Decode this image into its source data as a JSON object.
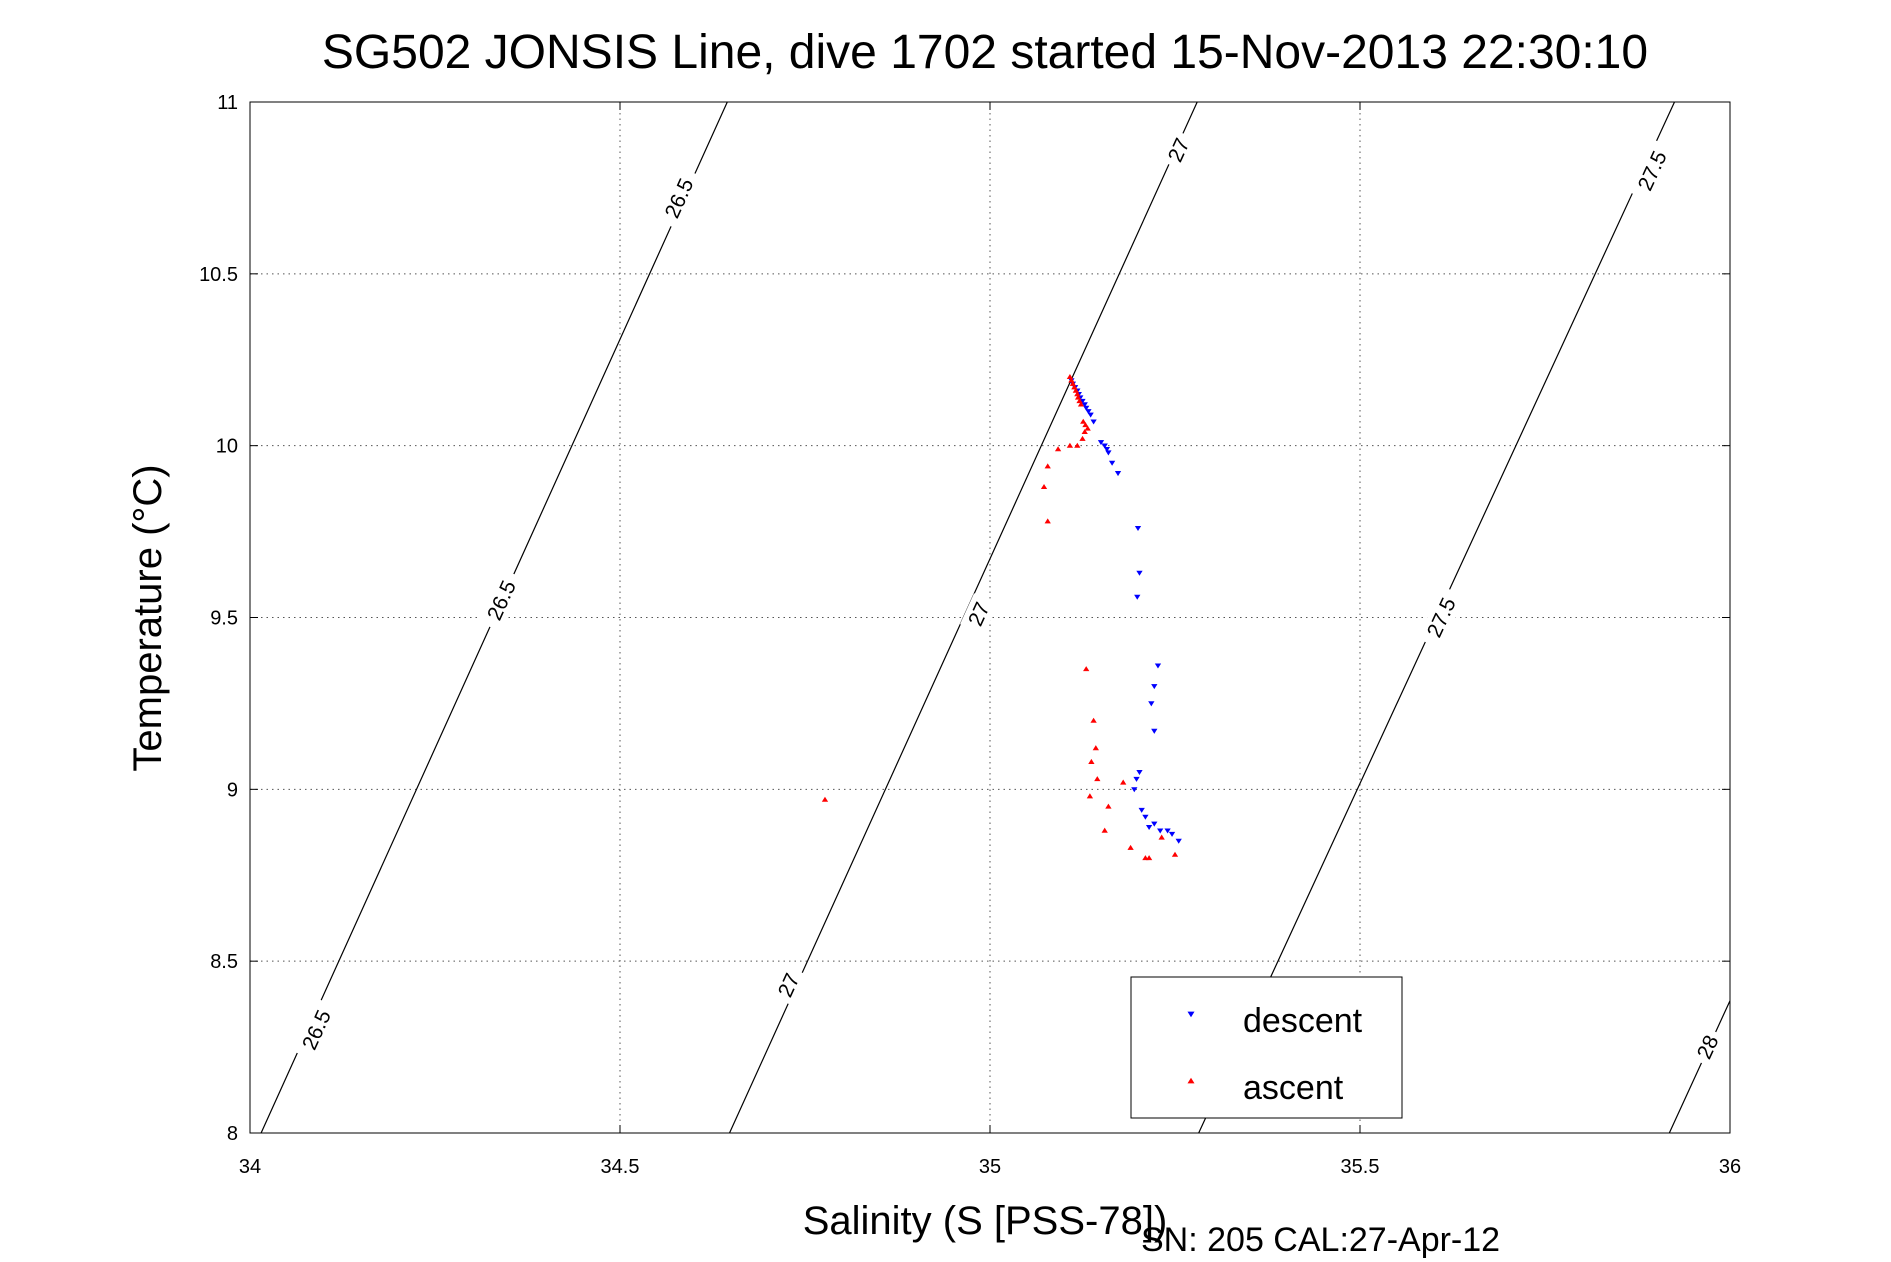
{
  "chart_data": {
    "type": "scatter",
    "title": "SG502 JONSIS Line, dive 1702 started 15-Nov-2013 22:30:10",
    "xlabel": "Salinity (S [PSS-78])",
    "ylabel": "Temperature (°C)",
    "xlim": [
      34,
      36
    ],
    "ylim": [
      8,
      11
    ],
    "xticks": [
      34,
      34.5,
      35,
      35.5,
      36
    ],
    "xtick_labels": [
      "34",
      "34.5",
      "35",
      "35.5",
      "36"
    ],
    "yticks": [
      8,
      8.5,
      9,
      9.5,
      10,
      10.5,
      11
    ],
    "ytick_labels": [
      "8",
      "8.5",
      "9",
      "9.5",
      "10",
      "10.5",
      "11"
    ],
    "grid": true,
    "legend_position": "bottom-right",
    "footer": "SN: 205  CAL:27-Apr-12",
    "series": [
      {
        "name": "descent",
        "marker": "triangle-down",
        "color": "#0000ff",
        "points": [
          [
            35.11,
            10.19
          ],
          [
            35.112,
            10.18
          ],
          [
            35.115,
            10.17
          ],
          [
            35.118,
            10.16
          ],
          [
            35.12,
            10.15
          ],
          [
            35.122,
            10.14
          ],
          [
            35.125,
            10.13
          ],
          [
            35.128,
            10.12
          ],
          [
            35.13,
            10.11
          ],
          [
            35.133,
            10.1
          ],
          [
            35.136,
            10.09
          ],
          [
            35.14,
            10.07
          ],
          [
            35.15,
            10.01
          ],
          [
            35.155,
            10.0
          ],
          [
            35.158,
            9.99
          ],
          [
            35.16,
            9.98
          ],
          [
            35.165,
            9.95
          ],
          [
            35.173,
            9.92
          ],
          [
            35.2,
            9.76
          ],
          [
            35.202,
            9.63
          ],
          [
            35.199,
            9.56
          ],
          [
            35.227,
            9.36
          ],
          [
            35.222,
            9.3
          ],
          [
            35.218,
            9.25
          ],
          [
            35.222,
            9.17
          ],
          [
            35.202,
            9.05
          ],
          [
            35.198,
            9.03
          ],
          [
            35.195,
            9.0
          ],
          [
            35.205,
            8.94
          ],
          [
            35.21,
            8.92
          ],
          [
            35.222,
            8.9
          ],
          [
            35.23,
            8.88
          ],
          [
            35.24,
            8.88
          ],
          [
            35.246,
            8.87
          ],
          [
            35.255,
            8.85
          ],
          [
            35.215,
            8.89
          ]
        ]
      },
      {
        "name": "ascent",
        "marker": "triangle-up",
        "color": "#ff0000",
        "points": [
          [
            35.108,
            10.2
          ],
          [
            35.11,
            10.19
          ],
          [
            35.112,
            10.18
          ],
          [
            35.114,
            10.17
          ],
          [
            35.116,
            10.16
          ],
          [
            35.118,
            10.15
          ],
          [
            35.119,
            10.14
          ],
          [
            35.121,
            10.13
          ],
          [
            35.123,
            10.12
          ],
          [
            35.126,
            10.07
          ],
          [
            35.129,
            10.06
          ],
          [
            35.132,
            10.05
          ],
          [
            35.128,
            10.04
          ],
          [
            35.125,
            10.02
          ],
          [
            35.118,
            10.0
          ],
          [
            35.108,
            10.0
          ],
          [
            35.092,
            9.99
          ],
          [
            35.078,
            9.94
          ],
          [
            35.073,
            9.88
          ],
          [
            35.078,
            9.78
          ],
          [
            35.13,
            9.35
          ],
          [
            35.14,
            9.2
          ],
          [
            35.143,
            9.12
          ],
          [
            35.137,
            9.08
          ],
          [
            35.145,
            9.03
          ],
          [
            35.135,
            8.98
          ],
          [
            35.16,
            8.95
          ],
          [
            35.18,
            9.02
          ],
          [
            35.155,
            8.88
          ],
          [
            35.19,
            8.83
          ],
          [
            35.215,
            8.8
          ],
          [
            35.21,
            8.8
          ],
          [
            35.232,
            8.86
          ],
          [
            35.25,
            8.81
          ],
          [
            34.777,
            8.97
          ]
        ]
      }
    ],
    "contours": [
      {
        "label": "26.5",
        "level": 26.5,
        "p1": [
          34.015,
          8.0
        ],
        "p2": [
          34.645,
          11.0
        ],
        "label_points": [
          [
            34.58,
            10.72
          ],
          [
            34.34,
            9.55
          ],
          [
            34.09,
            8.3
          ]
        ]
      },
      {
        "label": "27",
        "level": 27,
        "p1": [
          34.648,
          8.0
        ],
        "p2": [
          35.28,
          11.0
        ],
        "label_points": [
          [
            35.255,
            10.86
          ],
          [
            34.985,
            9.51
          ],
          [
            34.728,
            8.43
          ]
        ]
      },
      {
        "label": "27.5",
        "level": 27.5,
        "p1": [
          35.282,
          8.0
        ],
        "p2": [
          35.925,
          11.0
        ],
        "label_points": [
          [
            35.895,
            10.8
          ],
          [
            35.61,
            9.5
          ],
          [
            35.345,
            8.3
          ]
        ]
      },
      {
        "label": "28",
        "level": 28,
        "p1": [
          35.918,
          8.0
        ],
        "p2": [
          36.0,
          8.385
        ],
        "label_points": [
          [
            35.97,
            8.25
          ]
        ]
      }
    ]
  }
}
